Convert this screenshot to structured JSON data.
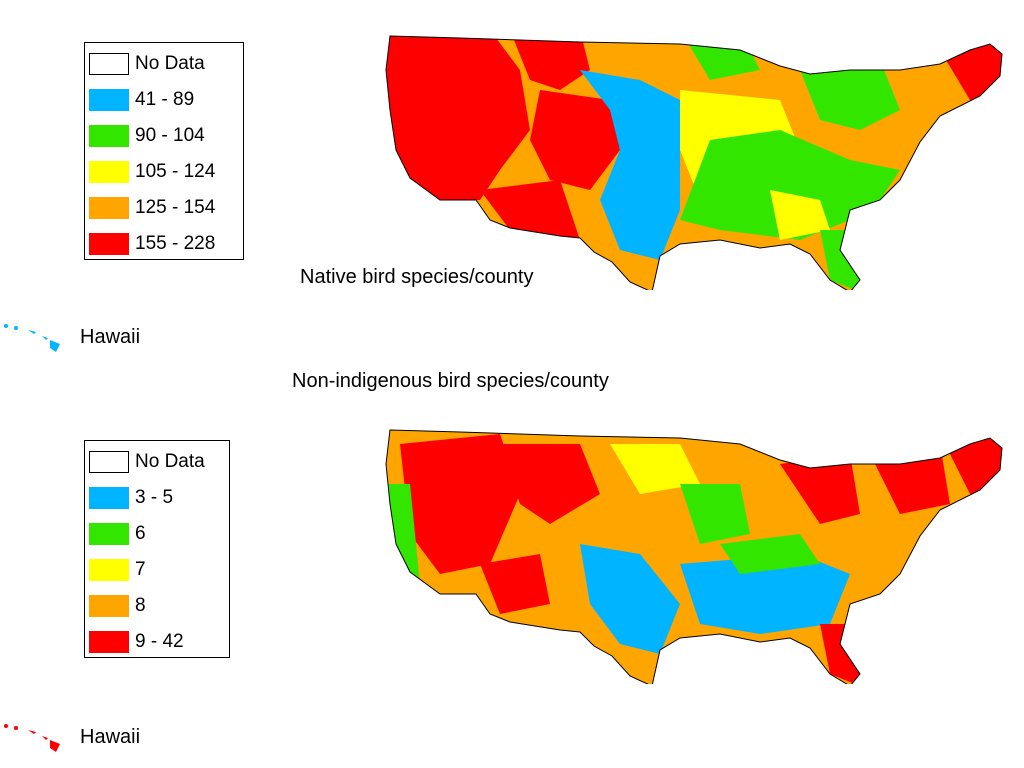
{
  "native": {
    "title": "Native bird species/county",
    "legend": [
      {
        "label": "No Data",
        "color": "#ffffff"
      },
      {
        "label": "41 - 89",
        "color": "#00b4ff"
      },
      {
        "label": "90 - 104",
        "color": "#33e600"
      },
      {
        "label": "105 - 124",
        "color": "#ffff00"
      },
      {
        "label": "125 - 154",
        "color": "#ffa500"
      },
      {
        "label": "155 - 228",
        "color": "#ff0000"
      }
    ],
    "hawaii_label": "Hawaii",
    "hawaii_color": "#00b4ff"
  },
  "nonindigenous": {
    "title": "Non-indigenous bird species/county",
    "legend": [
      {
        "label": "No Data",
        "color": "#ffffff"
      },
      {
        "label": "3 - 5",
        "color": "#00b4ff"
      },
      {
        "label": "6",
        "color": "#33e600"
      },
      {
        "label": "7",
        "color": "#ffff00"
      },
      {
        "label": "8",
        "color": "#ffa500"
      },
      {
        "label": "9 - 42",
        "color": "#ff0000"
      }
    ],
    "hawaii_label": "Hawaii",
    "hawaii_color": "#ff0000"
  }
}
